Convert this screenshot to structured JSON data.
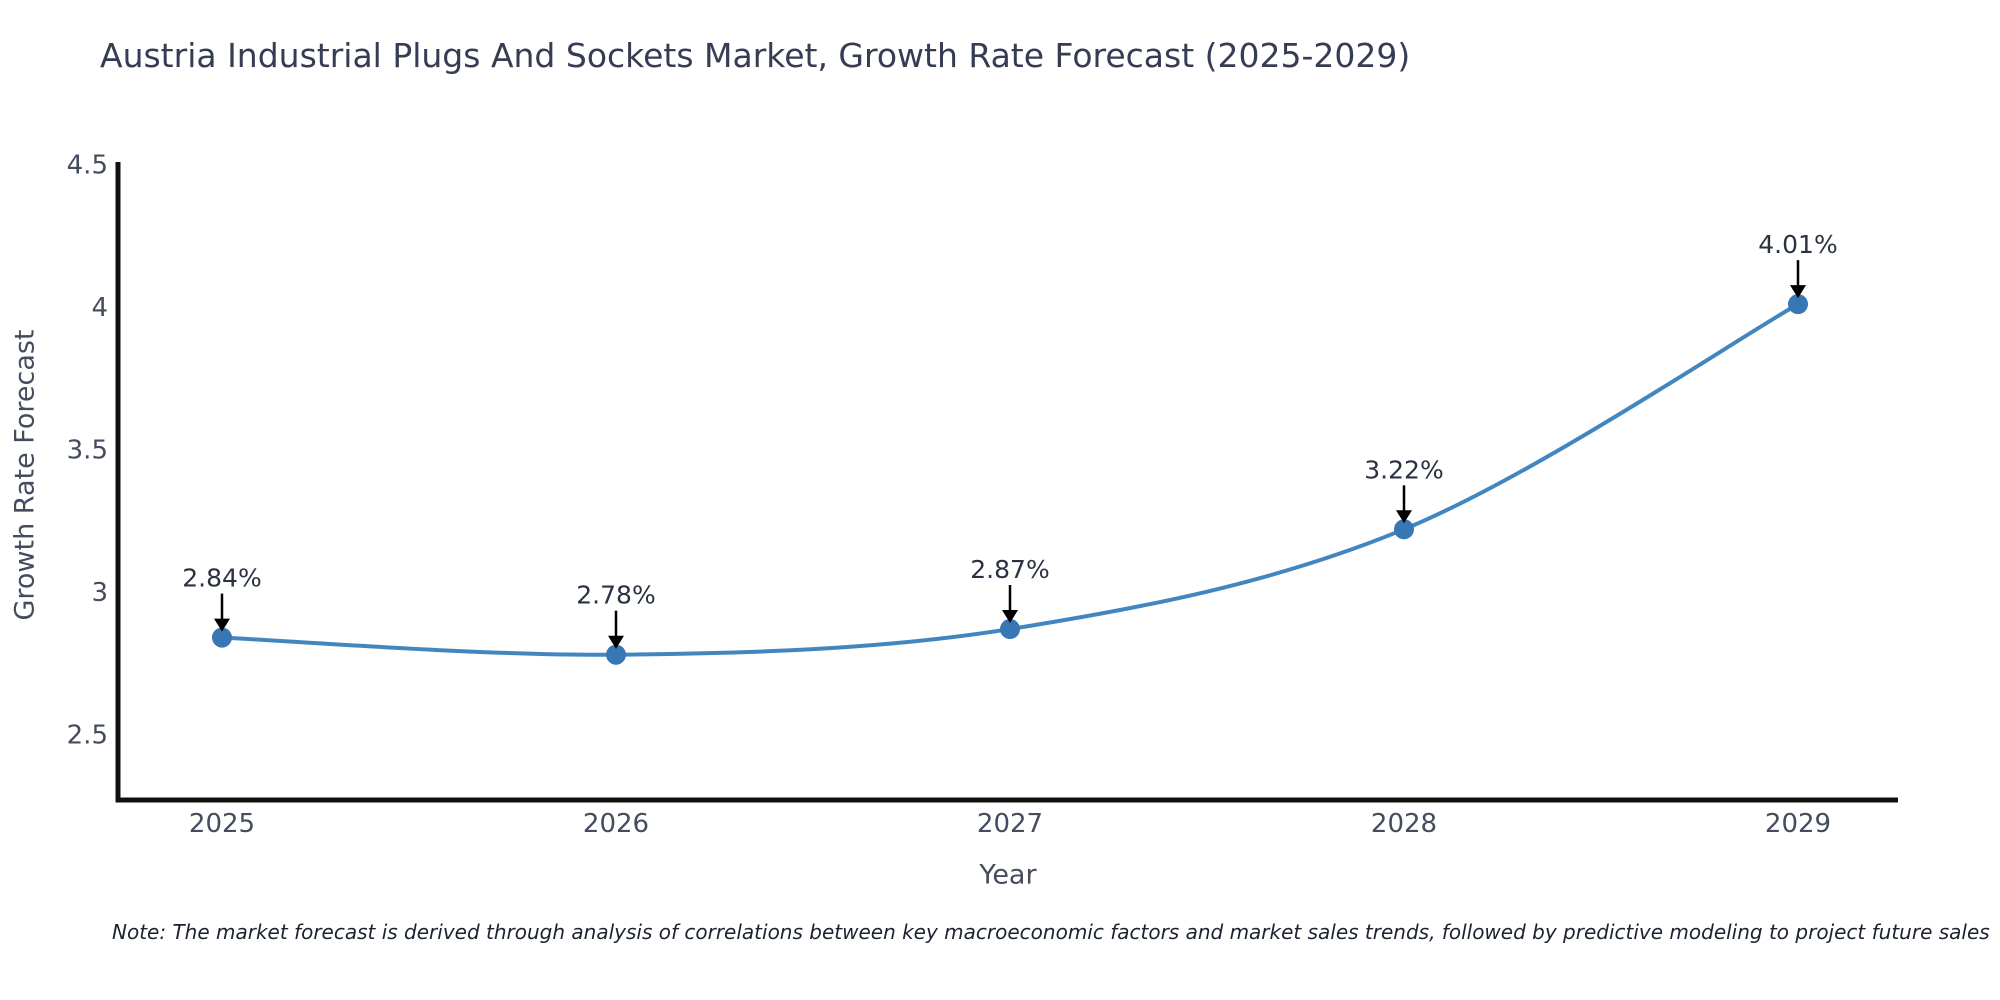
{
  "chart_data": {
    "type": "line",
    "title": "Austria Industrial Plugs And Sockets Market, Growth Rate Forecast (2025-2029)",
    "xlabel": "Year",
    "ylabel": "Growth Rate Forecast",
    "categories": [
      "2025",
      "2026",
      "2027",
      "2028",
      "2029"
    ],
    "series": [
      {
        "name": "Growth Rate Forecast",
        "values": [
          2.84,
          2.78,
          2.87,
          3.22,
          4.01
        ],
        "point_labels": [
          "2.84%",
          "2.78%",
          "2.87%",
          "3.22%",
          "4.01%"
        ]
      }
    ],
    "yticks": [
      4.5,
      4,
      3.5,
      3,
      2.5
    ],
    "ylim": [
      2.27,
      4.52
    ],
    "line_shape": "spline",
    "grid": false,
    "legend": "none",
    "note": "Note: The market forecast is derived through analysis of correlations between key macroeconomic factors and market sales trends, followed by predictive modeling to project future sales",
    "colors": {
      "line": "#4286c0",
      "marker": "#3876b4",
      "axis_spine": "#111111",
      "tick_text": "#444c5e",
      "title_text": "#363c54",
      "annotation_text": "#2a3142",
      "arrow": "#000000",
      "background": "#ffffff"
    }
  }
}
